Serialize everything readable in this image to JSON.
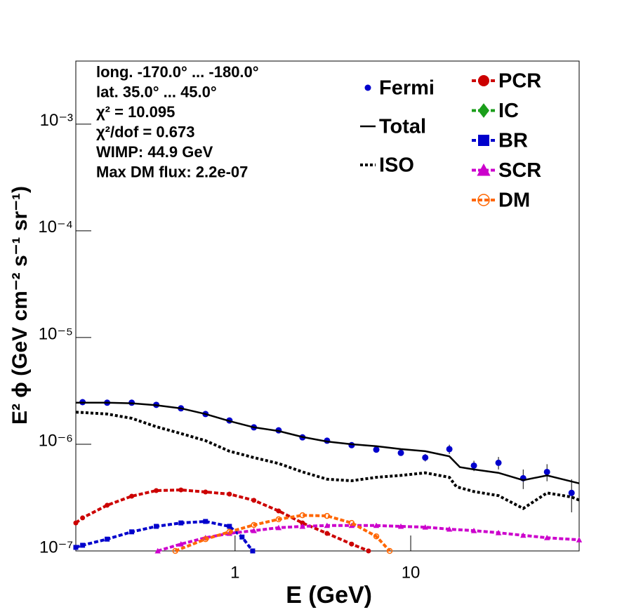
{
  "chart_data": {
    "type": "line",
    "x_label": "E (GeV)",
    "y_label": "E² ϕ (GeV cm⁻² s⁻¹ sr⁻¹)",
    "annotations": [
      "long. -170.0° ... -180.0°",
      "lat. 35.0° ... 45.0°",
      "χ² = 10.095",
      "χ²/dof = 0.673",
      "WIMP: 44.9 GeV",
      "Max DM flux: 2.2e-07"
    ],
    "log_x": true,
    "log_y": true,
    "xlim": [
      0.124,
      91
    ],
    "ylim": [
      1e-07,
      0.0039
    ],
    "xticks": [
      1,
      10
    ],
    "yticks": [
      {
        "value": 1e-07,
        "label": "10⁻⁷"
      },
      {
        "value": 1e-06,
        "label": "10⁻⁶"
      },
      {
        "value": 1e-05,
        "label": "10⁻⁵"
      },
      {
        "value": 0.0001,
        "label": "10⁻⁴"
      },
      {
        "value": 0.001,
        "label": "10⁻³"
      }
    ],
    "series": [
      {
        "name": "Fermi",
        "color": "#0000cc",
        "style": "points",
        "x": [
          0.1355,
          0.187,
          0.258,
          0.356,
          0.492,
          0.679,
          0.929,
          1.28,
          1.77,
          2.42,
          3.34,
          4.61,
          6.37,
          8.79,
          12.1,
          16.6,
          22.9,
          31.6,
          43.7,
          59.7,
          82.4
        ],
        "values": [
          2.48e-06,
          2.45e-06,
          2.45e-06,
          2.34e-06,
          2.17e-06,
          1.92e-06,
          1.67e-06,
          1.44e-06,
          1.35e-06,
          1.16e-06,
          1.08e-06,
          9.8e-07,
          8.9e-07,
          8.3e-07,
          7.5e-07,
          9e-07,
          6.3e-07,
          6.7e-07,
          4.8e-07,
          5.5e-07,
          3.5e-07
        ],
        "errors": [
          3e-08,
          3e-08,
          3e-08,
          3e-08,
          3e-08,
          3e-08,
          3e-08,
          3e-08,
          3e-08,
          3e-08,
          3e-08,
          3e-08,
          3e-08,
          5e-08,
          6e-08,
          9e-08,
          7e-08,
          9e-08,
          1e-07,
          1e-07,
          1.2e-07
        ]
      },
      {
        "name": "Total",
        "color": "#000000",
        "style": "solid",
        "x": [
          0.124,
          0.1355,
          0.187,
          0.258,
          0.356,
          0.492,
          0.679,
          0.929,
          1.28,
          1.77,
          2.42,
          3.34,
          4.61,
          6.37,
          8.79,
          12.1,
          16.6,
          19.05,
          22.9,
          31.6,
          43.7,
          59.7,
          91
        ],
        "values": [
          2.45e-06,
          2.45e-06,
          2.45e-06,
          2.42e-06,
          2.32e-06,
          2.17e-06,
          1.92e-06,
          1.65e-06,
          1.44e-06,
          1.33e-06,
          1.17e-06,
          1.06e-06,
          1e-06,
          9.6e-07,
          9e-07,
          8.6e-07,
          7.7e-07,
          6.1e-07,
          5.8e-07,
          5.4e-07,
          4.6e-07,
          5.1e-07,
          4.3e-07
        ]
      },
      {
        "name": "ISO",
        "color": "#000000",
        "style": "dotted",
        "x": [
          0.124,
          0.187,
          0.258,
          0.356,
          0.492,
          0.679,
          0.929,
          1.28,
          1.77,
          2.42,
          3.34,
          4.61,
          6.37,
          8.79,
          12.1,
          16.6,
          18.2,
          22.9,
          31.6,
          43.7,
          59.7,
          82.4,
          91
        ],
        "values": [
          2e-06,
          1.92e-06,
          1.75e-06,
          1.46e-06,
          1.26e-06,
          1.08e-06,
          8.6e-07,
          7.5e-07,
          6.6e-07,
          5.5e-07,
          4.7e-07,
          4.55e-07,
          4.9e-07,
          5.1e-07,
          5.4e-07,
          4.9e-07,
          4e-07,
          3.6e-07,
          3.3e-07,
          2.5e-07,
          3.5e-07,
          3.2e-07,
          3e-07
        ]
      },
      {
        "name": "PCR",
        "color": "#cc0000",
        "style": "circle",
        "x": [
          0.124,
          0.1355,
          0.187,
          0.258,
          0.356,
          0.492,
          0.679,
          0.929,
          1.28,
          1.77,
          2.42,
          3.34,
          4.61,
          5.75
        ],
        "values": [
          1.83e-07,
          2.04e-07,
          2.68e-07,
          3.26e-07,
          3.68e-07,
          3.73e-07,
          3.57e-07,
          3.41e-07,
          2.98e-07,
          2.37e-07,
          1.83e-07,
          1.46e-07,
          1.16e-07,
          1e-07
        ]
      },
      {
        "name": "IC",
        "color": "#1a9e1a",
        "style": "diamond"
      },
      {
        "name": "BR",
        "color": "#0000cc",
        "style": "square",
        "x": [
          0.124,
          0.1355,
          0.187,
          0.258,
          0.356,
          0.492,
          0.679,
          0.929,
          1.096,
          1.26
        ],
        "values": [
          1.08e-07,
          1.13e-07,
          1.29e-07,
          1.51e-07,
          1.7e-07,
          1.83e-07,
          1.89e-07,
          1.7e-07,
          1.35e-07,
          1e-07
        ]
      },
      {
        "name": "SCR",
        "color": "#cc00cc",
        "style": "triangle",
        "x": [
          0.363,
          0.492,
          0.679,
          0.929,
          1.28,
          1.77,
          2.42,
          3.34,
          4.61,
          6.37,
          8.79,
          12.1,
          16.6,
          22.9,
          31.6,
          43.7,
          59.7,
          91
        ],
        "values": [
          1e-07,
          1.16e-07,
          1.33e-07,
          1.46e-07,
          1.55e-07,
          1.65e-07,
          1.7e-07,
          1.73e-07,
          1.73e-07,
          1.73e-07,
          1.7e-07,
          1.67e-07,
          1.6e-07,
          1.55e-07,
          1.48e-07,
          1.4e-07,
          1.33e-07,
          1.27e-07
        ]
      },
      {
        "name": "DM",
        "color": "#ff6600",
        "style": "open-circle",
        "x": [
          0.457,
          0.679,
          0.929,
          1.28,
          1.77,
          2.42,
          3.34,
          4.61,
          6.37,
          7.59
        ],
        "values": [
          1e-07,
          1.29e-07,
          1.51e-07,
          1.75e-07,
          1.98e-07,
          2.16e-07,
          2.13e-07,
          1.83e-07,
          1.37e-07,
          1e-07
        ]
      }
    ]
  }
}
